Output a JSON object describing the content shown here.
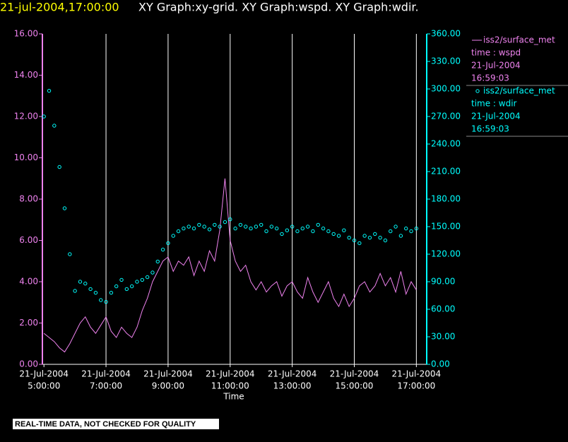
{
  "chart_data": {
    "type": "xy",
    "title": "21-jul-2004,17:00:00",
    "subtitle": "XY Graph:xy-grid.  XY Graph:wspd.  XY Graph:wdir.",
    "x_label": "Time",
    "x_date_label": "21-Jul-2004",
    "note": "REAL-TIME DATA, NOT CHECKED FOR QUALITY",
    "grid": true,
    "x": [
      300,
      310,
      320,
      330,
      340,
      350,
      360,
      370,
      380,
      390,
      400,
      410,
      420,
      430,
      440,
      450,
      460,
      470,
      480,
      490,
      500,
      510,
      520,
      530,
      540,
      550,
      560,
      570,
      580,
      590,
      600,
      610,
      620,
      630,
      640,
      650,
      660,
      670,
      680,
      690,
      700,
      710,
      720,
      730,
      740,
      750,
      760,
      770,
      780,
      790,
      800,
      810,
      820,
      830,
      840,
      850,
      860,
      870,
      880,
      890,
      900,
      910,
      920,
      930,
      940,
      950,
      960,
      970,
      980,
      990,
      1000,
      1010,
      1020
    ],
    "xlim": [
      297,
      1040
    ],
    "xticks": [
      {
        "value": 300,
        "label": "5:00:00"
      },
      {
        "value": 420,
        "label": "7:00:00"
      },
      {
        "value": 540,
        "label": "9:00:00"
      },
      {
        "value": 660,
        "label": "11:00:00"
      },
      {
        "value": 780,
        "label": "13:00:00"
      },
      {
        "value": 900,
        "label": "15:00:00"
      },
      {
        "value": 1020,
        "label": "17:00:00"
      }
    ],
    "ylim": [
      0,
      16
    ],
    "yticks": [
      {
        "value": 0,
        "label": "0.00"
      },
      {
        "value": 2,
        "label": "2.00"
      },
      {
        "value": 4,
        "label": "4.00"
      },
      {
        "value": 6,
        "label": "6.00"
      },
      {
        "value": 8,
        "label": "8.00"
      },
      {
        "value": 10,
        "label": "10.00"
      },
      {
        "value": 12,
        "label": "12.00"
      },
      {
        "value": 14,
        "label": "14.00"
      },
      {
        "value": 16,
        "label": "16.00"
      }
    ],
    "y2lim": [
      0,
      360
    ],
    "y2ticks": [
      {
        "value": 0,
        "label": "0.00"
      },
      {
        "value": 30,
        "label": "30.00"
      },
      {
        "value": 60,
        "label": "60.00"
      },
      {
        "value": 90,
        "label": "90.00"
      },
      {
        "value": 120,
        "label": "120.00"
      },
      {
        "value": 150,
        "label": "150.00"
      },
      {
        "value": 180,
        "label": "180.00"
      },
      {
        "value": 210,
        "label": "210.00"
      },
      {
        "value": 240,
        "label": "240.00"
      },
      {
        "value": 270,
        "label": "270.00"
      },
      {
        "value": 300,
        "label": "300.00"
      },
      {
        "value": 330,
        "label": "330.00"
      },
      {
        "value": 360,
        "label": "360.00"
      }
    ],
    "series": [
      {
        "name": "iss2/surface_met",
        "legend_detail": [
          "time : wspd",
          "21-Jul-2004",
          "16:59:03"
        ],
        "color": "#ee82ee",
        "style": "line",
        "axis": "y",
        "values": [
          1.5,
          1.3,
          1.1,
          0.8,
          0.6,
          1.0,
          1.5,
          2.0,
          2.3,
          1.8,
          1.5,
          1.9,
          2.3,
          1.6,
          1.3,
          1.8,
          1.5,
          1.3,
          1.8,
          2.6,
          3.2,
          4.0,
          4.5,
          5.0,
          5.2,
          4.5,
          5.0,
          4.8,
          5.2,
          4.3,
          5.0,
          4.5,
          5.5,
          5.0,
          6.5,
          9.0,
          6.0,
          5.0,
          4.5,
          4.8,
          4.0,
          3.6,
          4.0,
          3.5,
          3.8,
          4.0,
          3.3,
          3.8,
          4.0,
          3.5,
          3.2,
          4.2,
          3.5,
          3.0,
          3.5,
          4.0,
          3.2,
          2.8,
          3.4,
          2.8,
          3.2,
          3.8,
          4.0,
          3.5,
          3.8,
          4.4,
          3.8,
          4.2,
          3.5,
          4.5,
          3.4,
          4.0,
          3.6
        ]
      },
      {
        "name": "iss2/surface_met",
        "legend_detail": [
          "time : wdir",
          "21-Jul-2004",
          "16:59:03"
        ],
        "color": "#00ffff",
        "style": "markers",
        "axis": "y2",
        "values": [
          270,
          298,
          260,
          215,
          170,
          120,
          80,
          90,
          88,
          82,
          78,
          70,
          68,
          78,
          85,
          92,
          82,
          85,
          90,
          92,
          95,
          100,
          112,
          125,
          132,
          140,
          145,
          148,
          150,
          148,
          152,
          150,
          147,
          152,
          150,
          155,
          158,
          148,
          152,
          150,
          148,
          150,
          152,
          145,
          150,
          148,
          142,
          146,
          150,
          145,
          148,
          150,
          145,
          152,
          148,
          145,
          142,
          140,
          146,
          138,
          135,
          132,
          140,
          138,
          142,
          138,
          135,
          145,
          150,
          140,
          148,
          145,
          148
        ]
      }
    ]
  }
}
